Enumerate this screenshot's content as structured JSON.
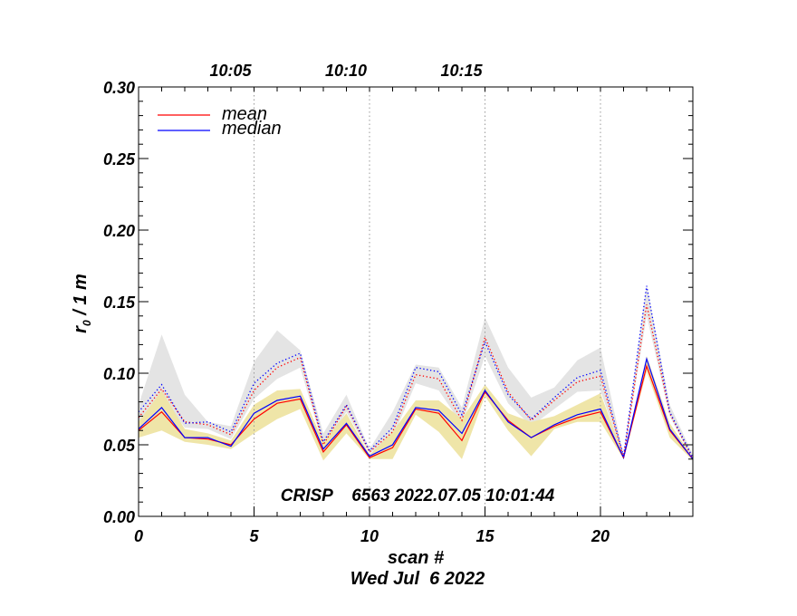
{
  "chart_data": {
    "type": "line",
    "xlabel": "scan #",
    "ylabel": "r₀ / 1 m",
    "ylabel_main": "r",
    "ylabel_sub": "0",
    "ylabel_rest": " / 1 m",
    "subtitle": "Wed Jul  6 2022",
    "annotation": "CRISP    6563 2022.07.05 10:01:44",
    "xlim": [
      0,
      24
    ],
    "ylim": [
      0.0,
      0.3
    ],
    "x_ticks": [
      0,
      5,
      10,
      15,
      20
    ],
    "x_tick_labels": [
      "0",
      "5",
      "10",
      "15",
      "20"
    ],
    "y_ticks": [
      0.0,
      0.05,
      0.1,
      0.15,
      0.2,
      0.25,
      0.3
    ],
    "y_tick_labels": [
      "0.00",
      "0.05",
      "0.10",
      "0.15",
      "0.20",
      "0.25",
      "0.30"
    ],
    "time_axis": {
      "ticks": [
        {
          "x": 5,
          "label": "10:05"
        },
        {
          "x": 10,
          "label": "10:10"
        },
        {
          "x": 15,
          "label": "10:15"
        }
      ],
      "gridlines_x": [
        5,
        10,
        15,
        20
      ]
    },
    "legend": {
      "placement": "top-left",
      "entries": [
        {
          "label": "mean",
          "color": "#ff0000"
        },
        {
          "label": "median",
          "color": "#0000ff"
        }
      ]
    },
    "x": [
      0,
      1,
      2,
      3,
      4,
      5,
      6,
      7,
      8,
      9,
      10,
      11,
      12,
      13,
      14,
      15,
      16,
      17,
      18,
      19,
      20,
      21,
      22,
      23,
      24
    ],
    "series": [
      {
        "name": "mean",
        "style": "solid",
        "color": "#ff0000",
        "values": [
          0.06,
          0.073,
          0.055,
          0.054,
          0.05,
          0.068,
          0.079,
          0.082,
          0.045,
          0.064,
          0.041,
          0.048,
          0.075,
          0.072,
          0.053,
          0.087,
          0.067,
          0.055,
          0.063,
          0.069,
          0.073,
          0.041,
          0.105,
          0.06,
          0.04
        ]
      },
      {
        "name": "median",
        "style": "solid",
        "color": "#0000ff",
        "values": [
          0.061,
          0.076,
          0.055,
          0.055,
          0.049,
          0.072,
          0.081,
          0.084,
          0.047,
          0.065,
          0.042,
          0.05,
          0.076,
          0.074,
          0.058,
          0.088,
          0.066,
          0.055,
          0.064,
          0.071,
          0.075,
          0.041,
          0.11,
          0.061,
          0.04
        ]
      },
      {
        "name": "mean (upper)",
        "style": "dotted",
        "color": "#ff0000",
        "values": [
          0.069,
          0.089,
          0.066,
          0.064,
          0.057,
          0.088,
          0.104,
          0.111,
          0.05,
          0.077,
          0.045,
          0.059,
          0.099,
          0.096,
          0.067,
          0.125,
          0.087,
          0.067,
          0.081,
          0.094,
          0.098,
          0.041,
          0.148,
          0.072,
          0.04
        ]
      },
      {
        "name": "median (upper)",
        "style": "dotted",
        "color": "#0000ff",
        "values": [
          0.073,
          0.092,
          0.065,
          0.066,
          0.059,
          0.093,
          0.107,
          0.114,
          0.052,
          0.078,
          0.046,
          0.062,
          0.104,
          0.101,
          0.071,
          0.122,
          0.085,
          0.068,
          0.083,
          0.097,
          0.102,
          0.042,
          0.161,
          0.073,
          0.041
        ]
      }
    ],
    "bands": [
      {
        "name": "range of upper values",
        "color": "#e4e4e4",
        "lower": [
          0.065,
          0.084,
          0.062,
          0.061,
          0.054,
          0.082,
          0.096,
          0.104,
          0.049,
          0.073,
          0.044,
          0.055,
          0.093,
          0.088,
          0.064,
          0.112,
          0.079,
          0.063,
          0.075,
          0.087,
          0.088,
          0.041,
          0.14,
          0.07,
          0.039
        ],
        "upper": [
          0.078,
          0.127,
          0.085,
          0.066,
          0.063,
          0.108,
          0.13,
          0.116,
          0.058,
          0.085,
          0.047,
          0.073,
          0.106,
          0.104,
          0.076,
          0.139,
          0.104,
          0.083,
          0.09,
          0.109,
          0.118,
          0.043,
          0.162,
          0.078,
          0.043
        ]
      },
      {
        "name": "range of lower values",
        "color": "#efe5a8",
        "lower": [
          0.055,
          0.06,
          0.052,
          0.05,
          0.047,
          0.058,
          0.068,
          0.075,
          0.039,
          0.058,
          0.04,
          0.04,
          0.071,
          0.059,
          0.04,
          0.084,
          0.06,
          0.042,
          0.061,
          0.066,
          0.066,
          0.04,
          0.101,
          0.055,
          0.039
        ],
        "upper": [
          0.066,
          0.088,
          0.061,
          0.058,
          0.053,
          0.078,
          0.088,
          0.089,
          0.052,
          0.072,
          0.043,
          0.059,
          0.081,
          0.081,
          0.068,
          0.092,
          0.072,
          0.066,
          0.07,
          0.078,
          0.086,
          0.042,
          0.112,
          0.065,
          0.041
        ]
      }
    ]
  }
}
